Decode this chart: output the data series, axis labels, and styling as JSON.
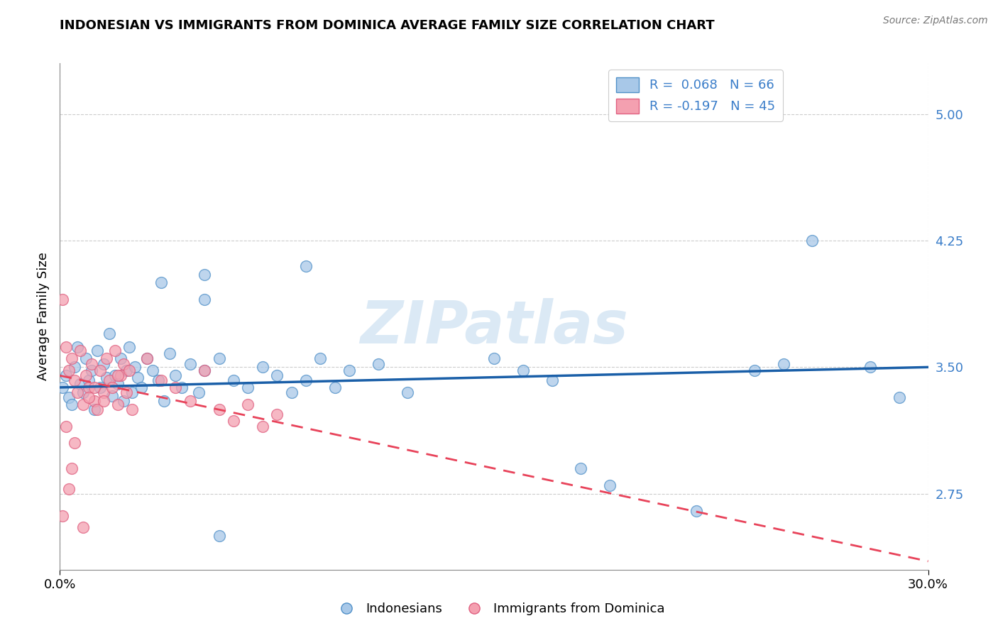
{
  "title": "INDONESIAN VS IMMIGRANTS FROM DOMINICA AVERAGE FAMILY SIZE CORRELATION CHART",
  "source": "Source: ZipAtlas.com",
  "ylabel": "Average Family Size",
  "y_ticks": [
    2.75,
    3.5,
    4.25,
    5.0
  ],
  "x_range": [
    0.0,
    0.3
  ],
  "y_range": [
    2.3,
    5.3
  ],
  "legend_blue_label": "R =  0.068   N = 66",
  "legend_pink_label": "R = -0.197   N = 45",
  "legend_label_indonesians": "Indonesians",
  "legend_label_dominica": "Immigrants from Dominica",
  "blue_fill": "#a8c8e8",
  "pink_fill": "#f4a0b0",
  "blue_edge": "#5090c8",
  "pink_edge": "#e06080",
  "blue_line_color": "#1a5fa8",
  "pink_line_color": "#e8435a",
  "watermark": "ZIPatlas",
  "blue_scatter_x": [
    0.001,
    0.002,
    0.003,
    0.004,
    0.005,
    0.006,
    0.007,
    0.008,
    0.009,
    0.01,
    0.011,
    0.012,
    0.013,
    0.014,
    0.015,
    0.016,
    0.017,
    0.018,
    0.019,
    0.02,
    0.021,
    0.022,
    0.023,
    0.024,
    0.025,
    0.026,
    0.027,
    0.028,
    0.03,
    0.032,
    0.034,
    0.036,
    0.038,
    0.04,
    0.042,
    0.045,
    0.048,
    0.05,
    0.055,
    0.06,
    0.065,
    0.07,
    0.075,
    0.08,
    0.085,
    0.09,
    0.095,
    0.1,
    0.11,
    0.12,
    0.05,
    0.085,
    0.15,
    0.16,
    0.17,
    0.18,
    0.19,
    0.22,
    0.24,
    0.25,
    0.26,
    0.28,
    0.29,
    0.05,
    0.035,
    0.055
  ],
  "blue_scatter_y": [
    3.38,
    3.45,
    3.32,
    3.28,
    3.5,
    3.62,
    3.4,
    3.35,
    3.55,
    3.42,
    3.48,
    3.25,
    3.6,
    3.38,
    3.52,
    3.44,
    3.7,
    3.33,
    3.45,
    3.4,
    3.55,
    3.3,
    3.48,
    3.62,
    3.35,
    3.5,
    3.44,
    3.38,
    3.55,
    3.48,
    3.42,
    3.3,
    3.58,
    3.45,
    3.38,
    3.52,
    3.35,
    3.48,
    3.55,
    3.42,
    3.38,
    3.5,
    3.45,
    3.35,
    3.42,
    3.55,
    3.38,
    3.48,
    3.52,
    3.35,
    4.05,
    4.1,
    3.55,
    3.48,
    3.42,
    2.9,
    2.8,
    2.65,
    3.48,
    3.52,
    4.25,
    3.5,
    3.32,
    3.9,
    4.0,
    2.5
  ],
  "pink_scatter_x": [
    0.001,
    0.002,
    0.003,
    0.004,
    0.005,
    0.006,
    0.007,
    0.008,
    0.009,
    0.01,
    0.011,
    0.012,
    0.013,
    0.014,
    0.015,
    0.016,
    0.017,
    0.018,
    0.019,
    0.02,
    0.021,
    0.022,
    0.023,
    0.024,
    0.025,
    0.03,
    0.035,
    0.04,
    0.045,
    0.05,
    0.055,
    0.06,
    0.065,
    0.07,
    0.075,
    0.001,
    0.002,
    0.003,
    0.004,
    0.005,
    0.008,
    0.01,
    0.012,
    0.015,
    0.02
  ],
  "pink_scatter_y": [
    3.9,
    3.62,
    3.48,
    3.55,
    3.42,
    3.35,
    3.6,
    3.28,
    3.45,
    3.38,
    3.52,
    3.3,
    3.25,
    3.48,
    3.35,
    3.55,
    3.42,
    3.38,
    3.6,
    3.28,
    3.45,
    3.52,
    3.35,
    3.48,
    3.25,
    3.55,
    3.42,
    3.38,
    3.3,
    3.48,
    3.25,
    3.18,
    3.28,
    3.15,
    3.22,
    2.62,
    3.15,
    2.78,
    2.9,
    3.05,
    2.55,
    3.32,
    3.38,
    3.3,
    3.45
  ],
  "blue_trendline": [
    0.0,
    0.3,
    3.38,
    3.5
  ],
  "pink_trendline": [
    0.0,
    0.3,
    3.45,
    2.35
  ]
}
